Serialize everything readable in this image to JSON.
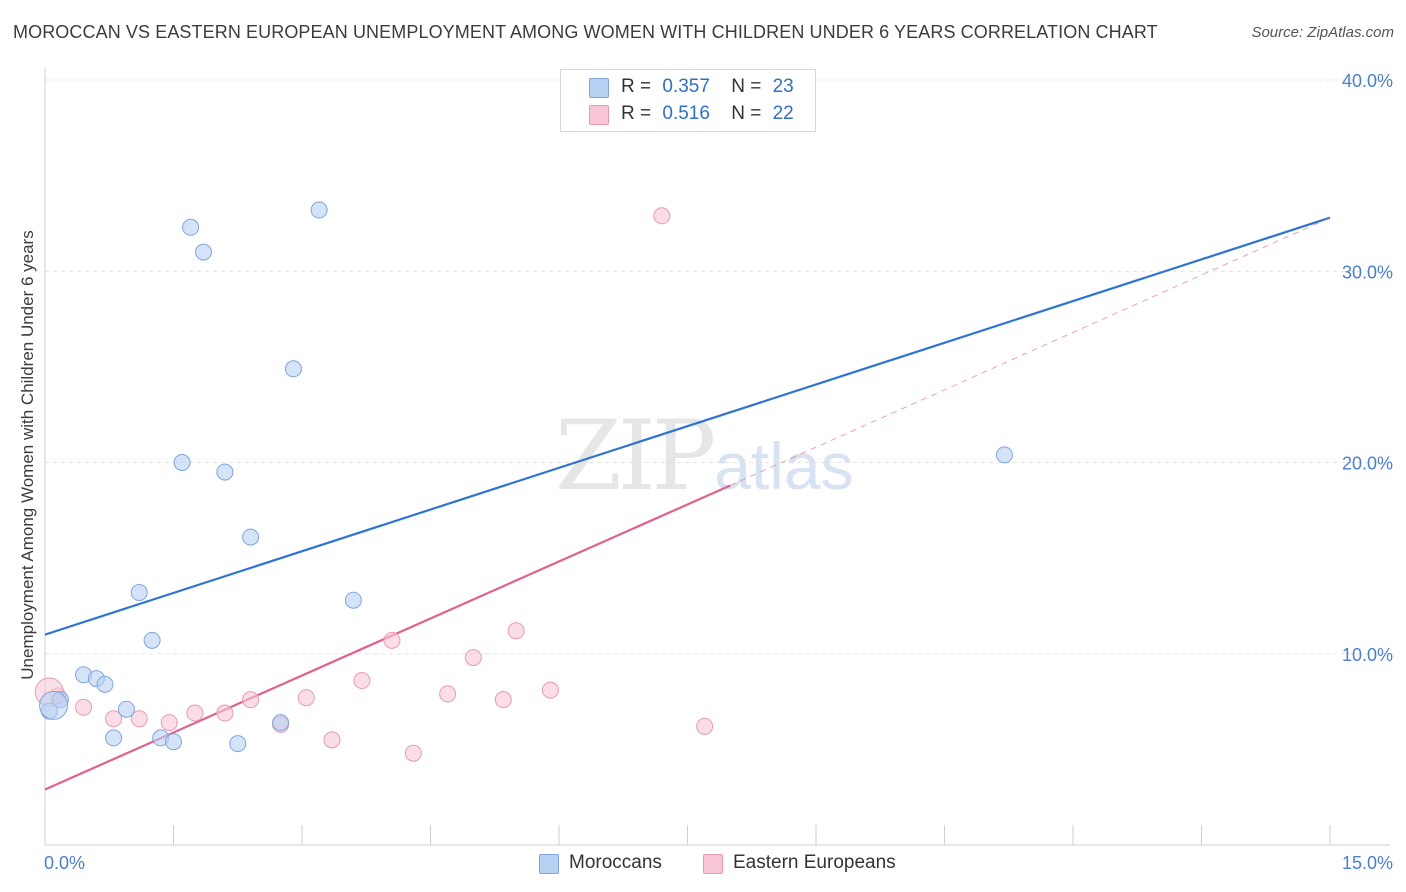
{
  "title": "MOROCCAN VS EASTERN EUROPEAN UNEMPLOYMENT AMONG WOMEN WITH CHILDREN UNDER 6 YEARS CORRELATION CHART",
  "source": "Source: ZipAtlas.com",
  "watermark": {
    "zip": "ZIP",
    "atlas": "atlas"
  },
  "legend": {
    "rows": [
      {
        "r_label": "R =",
        "r_value": "0.357",
        "n_label": "N =",
        "n_value": "23"
      },
      {
        "r_label": "R =",
        "r_value": "0.516",
        "n_label": "N =",
        "n_value": "22"
      }
    ]
  },
  "bottom_legend": {
    "moroccans": "Moroccans",
    "eastern": "Eastern Europeans"
  },
  "colors": {
    "blue_fill": "#b8d1f3",
    "blue_stroke": "#7ea6dc",
    "blue_line": "#2f74d0",
    "pink_fill": "#f8c6d5",
    "pink_stroke": "#e89ab2",
    "pink_line": "#e0618c",
    "grid": "#e2e2e2",
    "tick_text": "#4a7fcb"
  },
  "chart_data": {
    "type": "scatter",
    "title": "MOROCCAN VS EASTERN EUROPEAN UNEMPLOYMENT AMONG WOMEN WITH CHILDREN UNDER 6 YEARS CORRELATION CHART",
    "xlabel": "",
    "ylabel": "Unemployment Among Women with Children Under 6 years",
    "xlim": [
      0,
      15
    ],
    "ylim": [
      0,
      40
    ],
    "x_tick_labels": [
      "0.0%",
      "15.0%"
    ],
    "y_ticks": [
      10,
      20,
      30,
      40
    ],
    "y_tick_labels": [
      "10.0%",
      "20.0%",
      "30.0%",
      "40.0%"
    ],
    "grid": true,
    "legend_position": "top-center",
    "series": [
      {
        "name": "Moroccans",
        "r": 0.357,
        "n": 23,
        "points": [
          [
            0.05,
            7.0
          ],
          [
            0.18,
            7.6
          ],
          [
            0.45,
            8.9
          ],
          [
            0.6,
            8.7
          ],
          [
            0.7,
            8.4
          ],
          [
            0.8,
            5.6
          ],
          [
            0.95,
            7.1
          ],
          [
            1.1,
            13.2
          ],
          [
            1.25,
            10.7
          ],
          [
            1.35,
            5.6
          ],
          [
            1.5,
            5.4
          ],
          [
            1.6,
            20.0
          ],
          [
            1.7,
            32.3
          ],
          [
            1.85,
            31.0
          ],
          [
            2.1,
            19.5
          ],
          [
            2.25,
            5.3
          ],
          [
            2.4,
            16.1
          ],
          [
            2.75,
            6.4
          ],
          [
            2.9,
            24.9
          ],
          [
            3.2,
            33.2
          ],
          [
            3.6,
            12.8
          ],
          [
            11.2,
            20.4
          ],
          [
            0.1,
            7.3
          ]
        ],
        "trend": {
          "x": [
            0,
            15
          ],
          "y": [
            11.0,
            32.8
          ]
        }
      },
      {
        "name": "Eastern Europeans",
        "points": [
          [
            0.15,
            7.8
          ],
          [
            0.45,
            7.2
          ],
          [
            0.8,
            6.6
          ],
          [
            1.1,
            6.6
          ],
          [
            1.45,
            6.4
          ],
          [
            1.75,
            6.9
          ],
          [
            2.1,
            6.9
          ],
          [
            2.4,
            7.6
          ],
          [
            2.75,
            6.3
          ],
          [
            3.05,
            7.7
          ],
          [
            3.35,
            5.5
          ],
          [
            3.7,
            8.6
          ],
          [
            4.05,
            10.7
          ],
          [
            4.3,
            4.8
          ],
          [
            4.7,
            7.9
          ],
          [
            5.0,
            9.8
          ],
          [
            5.35,
            7.6
          ],
          [
            5.5,
            11.2
          ],
          [
            5.9,
            8.1
          ],
          [
            7.2,
            32.9
          ],
          [
            7.7,
            6.2
          ],
          [
            0.05,
            8.0
          ]
        ],
        "r": 0.516,
        "n": 22,
        "trend": {
          "x": [
            0,
            8.0
          ],
          "y": [
            2.9,
            18.8
          ]
        },
        "trend_dashed": {
          "x": [
            8.0,
            15
          ],
          "y": [
            18.8,
            32.8
          ]
        }
      }
    ]
  }
}
